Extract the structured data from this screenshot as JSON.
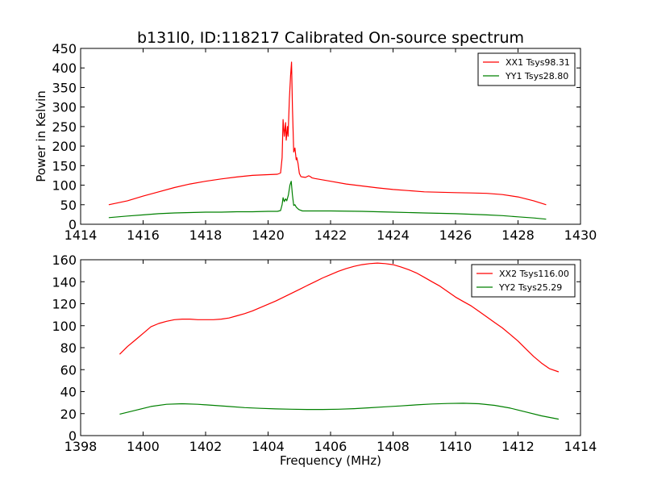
{
  "chart_data": [
    {
      "type": "line",
      "title": "b131l0, ID:118217 Calibrated On-source spectrum",
      "xlabel": "",
      "ylabel": "Power in Kelvin",
      "xlim": [
        1414,
        1430
      ],
      "ylim": [
        0,
        450
      ],
      "xticks": [
        1414,
        1416,
        1418,
        1420,
        1422,
        1424,
        1426,
        1428,
        1430
      ],
      "yticks": [
        0,
        50,
        100,
        150,
        200,
        250,
        300,
        350,
        400,
        450
      ],
      "legend_position": "top-right",
      "grid": false,
      "series": [
        {
          "name": "XX1 Tsys98.31",
          "color": "#ff0000",
          "x": [
            1414.9,
            1415.5,
            1416.0,
            1416.5,
            1417.0,
            1417.5,
            1418.0,
            1418.5,
            1419.0,
            1419.5,
            1420.0,
            1420.3,
            1420.4,
            1420.45,
            1420.48,
            1420.52,
            1420.56,
            1420.58,
            1420.62,
            1420.64,
            1420.68,
            1420.72,
            1420.75,
            1420.78,
            1420.82,
            1420.86,
            1420.9,
            1420.92,
            1420.96,
            1421.0,
            1421.05,
            1421.1,
            1421.2,
            1421.3,
            1421.35,
            1421.4,
            1421.5,
            1422.0,
            1422.5,
            1423.0,
            1423.5,
            1424.0,
            1424.5,
            1425.0,
            1425.5,
            1426.0,
            1426.5,
            1427.0,
            1427.5,
            1428.0,
            1428.5,
            1428.9
          ],
          "y": [
            50,
            60,
            72,
            83,
            94,
            103,
            110,
            116,
            121,
            125,
            127,
            128,
            131,
            170,
            268,
            225,
            260,
            215,
            250,
            225,
            320,
            380,
            415,
            300,
            185,
            195,
            165,
            170,
            155,
            130,
            122,
            121,
            120,
            124,
            122,
            119,
            117,
            110,
            103,
            98,
            93,
            89,
            86,
            83,
            82,
            81,
            80,
            79,
            76,
            70,
            60,
            50
          ]
        },
        {
          "name": "YY1 Tsys28.80",
          "color": "#008000",
          "x": [
            1414.9,
            1415.5,
            1416.0,
            1416.5,
            1417.0,
            1417.5,
            1418.0,
            1418.5,
            1419.0,
            1419.5,
            1420.0,
            1420.3,
            1420.4,
            1420.45,
            1420.48,
            1420.52,
            1420.56,
            1420.6,
            1420.65,
            1420.7,
            1420.74,
            1420.78,
            1420.82,
            1420.86,
            1420.9,
            1420.95,
            1421.0,
            1421.1,
            1421.2,
            1421.4,
            1422.0,
            1423.0,
            1424.0,
            1425.0,
            1426.0,
            1427.0,
            1427.5,
            1428.0,
            1428.5,
            1428.9
          ],
          "y": [
            17,
            21,
            24,
            27,
            29,
            30,
            31,
            31,
            32,
            32,
            33,
            33,
            35,
            50,
            68,
            58,
            65,
            60,
            75,
            100,
            110,
            75,
            48,
            50,
            44,
            40,
            37,
            34,
            34,
            34,
            34,
            33,
            31,
            29,
            27,
            24,
            22,
            19,
            16,
            13
          ]
        }
      ]
    },
    {
      "type": "line",
      "title": "",
      "xlabel": "Frequency (MHz)",
      "ylabel": "",
      "xlim": [
        1398,
        1414
      ],
      "ylim": [
        0,
        160
      ],
      "xticks": [
        1398,
        1400,
        1402,
        1404,
        1406,
        1408,
        1410,
        1412,
        1414
      ],
      "yticks": [
        0,
        20,
        40,
        60,
        80,
        100,
        120,
        140,
        160
      ],
      "legend_position": "top-right",
      "grid": false,
      "series": [
        {
          "name": "XX2 Tsys116.00",
          "color": "#ff0000",
          "x": [
            1399.25,
            1399.5,
            1399.75,
            1400.0,
            1400.25,
            1400.5,
            1400.75,
            1401.0,
            1401.25,
            1401.5,
            1401.75,
            1402.0,
            1402.25,
            1402.5,
            1402.75,
            1403.0,
            1403.25,
            1403.5,
            1403.75,
            1404.0,
            1404.25,
            1404.5,
            1404.75,
            1405.0,
            1405.25,
            1405.5,
            1405.75,
            1406.0,
            1406.25,
            1406.5,
            1406.75,
            1407.0,
            1407.25,
            1407.5,
            1407.75,
            1408.0,
            1408.25,
            1408.5,
            1408.75,
            1409.0,
            1409.25,
            1409.5,
            1409.75,
            1410.0,
            1410.25,
            1410.5,
            1410.75,
            1411.0,
            1411.25,
            1411.5,
            1411.75,
            1412.0,
            1412.25,
            1412.5,
            1412.75,
            1413.0,
            1413.3
          ],
          "y": [
            74,
            81,
            87,
            93,
            99,
            102,
            104,
            105.5,
            106,
            106,
            105.5,
            105.5,
            105.5,
            106,
            107,
            109,
            111,
            113.5,
            116.5,
            119.5,
            122.5,
            126,
            129.5,
            133,
            136.5,
            140,
            143.5,
            146.5,
            149.5,
            152,
            154,
            155.5,
            156.5,
            157,
            156.5,
            155.5,
            153.5,
            151,
            148,
            144,
            140,
            136,
            131,
            126,
            122,
            118,
            113,
            108,
            103,
            98,
            92,
            86,
            79,
            72,
            66,
            61,
            58
          ]
        },
        {
          "name": "YY2 Tsys25.29",
          "color": "#008000",
          "x": [
            1399.25,
            1399.75,
            1400.25,
            1400.75,
            1401.25,
            1401.75,
            1402.25,
            1402.75,
            1403.25,
            1403.75,
            1404.25,
            1404.75,
            1405.25,
            1405.75,
            1406.25,
            1406.75,
            1407.25,
            1407.75,
            1408.25,
            1408.75,
            1409.25,
            1409.75,
            1410.25,
            1410.75,
            1411.25,
            1411.75,
            1412.25,
            1412.75,
            1413.3
          ],
          "y": [
            19.5,
            23,
            26.5,
            28.5,
            29,
            28.5,
            27.5,
            26.5,
            25.5,
            24.8,
            24.3,
            24,
            23.8,
            23.8,
            24,
            24.5,
            25.3,
            26.2,
            27,
            28,
            28.8,
            29.2,
            29.4,
            29,
            27.5,
            25,
            21.5,
            18,
            15
          ]
        }
      ]
    }
  ]
}
